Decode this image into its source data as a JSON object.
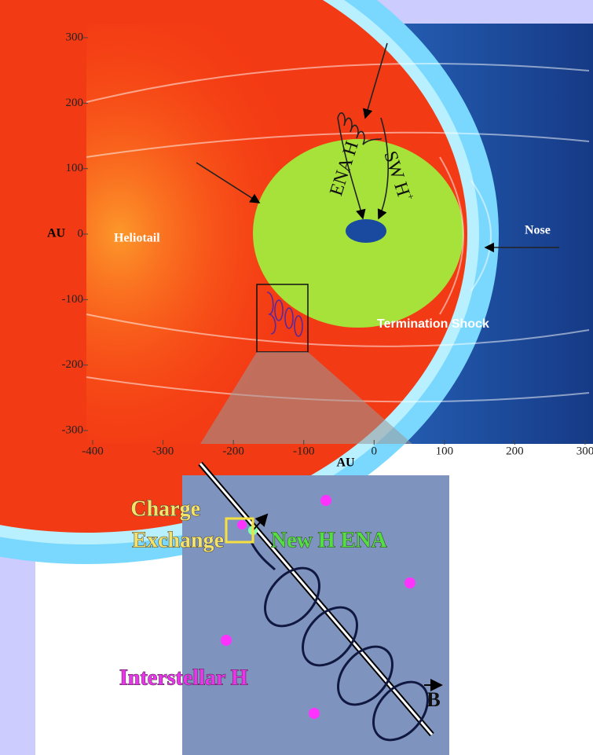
{
  "axes": {
    "y_label": "AU",
    "x_label": "AU",
    "yticks": [
      300,
      200,
      100,
      0,
      -100,
      -200,
      -300
    ],
    "xticks": [
      -400,
      -300,
      -200,
      -100,
      0,
      100,
      200,
      300
    ]
  },
  "annotations": {
    "heliotail": "Heliotail",
    "nose": "Nose",
    "termination_shock": "Termination Shock",
    "ena_h": "ENA H",
    "sw_h": "SW H",
    "sw_h_charge": "+"
  },
  "inset": {
    "charge_exchange": [
      "Charge",
      "Exchange"
    ],
    "new_h_ena": "New H ENA",
    "interstellar_h": "Interstellar H",
    "field": "B"
  }
}
